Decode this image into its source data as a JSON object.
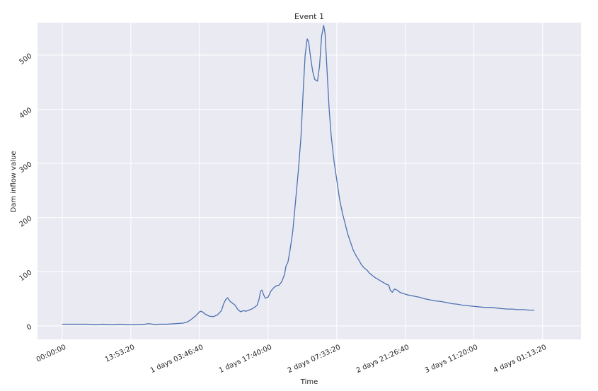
{
  "colors": {
    "plot_background": "#EAEAF2",
    "grid": "#FFFFFF",
    "line": "#4C72B0",
    "text": "#262626"
  },
  "chart_data": {
    "type": "line",
    "title": "Event 1",
    "xlabel": "Time",
    "ylabel": "Dam inflow value",
    "grid": true,
    "xlim": [
      -18000,
      378000
    ],
    "ylim": [
      -25,
      560
    ],
    "x_ticks": [
      {
        "value": 0,
        "label": "00:00:00"
      },
      {
        "value": 50000,
        "label": "13:53:20"
      },
      {
        "value": 100000,
        "label": "1 days 03:46:40"
      },
      {
        "value": 150000,
        "label": "1 days 17:40:00"
      },
      {
        "value": 200000,
        "label": "2 days 07:33:20"
      },
      {
        "value": 250000,
        "label": "2 days 21:26:40"
      },
      {
        "value": 300000,
        "label": "3 days 11:20:00"
      },
      {
        "value": 350000,
        "label": "4 days 01:13:20"
      }
    ],
    "y_ticks": [
      {
        "value": 0,
        "label": "0"
      },
      {
        "value": 100,
        "label": "100"
      },
      {
        "value": 200,
        "label": "200"
      },
      {
        "value": 300,
        "label": "300"
      },
      {
        "value": 400,
        "label": "400"
      },
      {
        "value": 500,
        "label": "500"
      }
    ],
    "series": [
      {
        "points": [
          [
            0,
            3
          ],
          [
            6000,
            3
          ],
          [
            12000,
            3
          ],
          [
            18000,
            3
          ],
          [
            24000,
            2
          ],
          [
            30000,
            3
          ],
          [
            36000,
            2
          ],
          [
            42000,
            3
          ],
          [
            48000,
            2
          ],
          [
            54000,
            2
          ],
          [
            60000,
            3
          ],
          [
            63000,
            4
          ],
          [
            66000,
            3
          ],
          [
            68000,
            2
          ],
          [
            70000,
            3
          ],
          [
            76000,
            3
          ],
          [
            82000,
            4
          ],
          [
            88000,
            5
          ],
          [
            91000,
            7
          ],
          [
            93000,
            10
          ],
          [
            95000,
            14
          ],
          [
            97000,
            18
          ],
          [
            99000,
            23
          ],
          [
            100500,
            27
          ],
          [
            102000,
            26
          ],
          [
            104000,
            22
          ],
          [
            107000,
            18
          ],
          [
            110000,
            17
          ],
          [
            113000,
            20
          ],
          [
            116000,
            28
          ],
          [
            117500,
            40
          ],
          [
            119000,
            48
          ],
          [
            120500,
            52
          ],
          [
            122000,
            46
          ],
          [
            124000,
            42
          ],
          [
            126000,
            38
          ],
          [
            128000,
            30
          ],
          [
            130000,
            26
          ],
          [
            132000,
            28
          ],
          [
            134000,
            27
          ],
          [
            136000,
            29
          ],
          [
            138000,
            31
          ],
          [
            140000,
            34
          ],
          [
            142000,
            38
          ],
          [
            143500,
            50
          ],
          [
            144500,
            64
          ],
          [
            145500,
            66
          ],
          [
            147000,
            56
          ],
          [
            148000,
            51
          ],
          [
            150000,
            53
          ],
          [
            152000,
            64
          ],
          [
            154000,
            70
          ],
          [
            156000,
            74
          ],
          [
            158000,
            75
          ],
          [
            160000,
            82
          ],
          [
            162000,
            95
          ],
          [
            163000,
            110
          ],
          [
            164500,
            118
          ],
          [
            166000,
            140
          ],
          [
            168000,
            175
          ],
          [
            170000,
            230
          ],
          [
            172000,
            285
          ],
          [
            174000,
            350
          ],
          [
            175500,
            430
          ],
          [
            177000,
            500
          ],
          [
            178500,
            530
          ],
          [
            179500,
            525
          ],
          [
            181000,
            495
          ],
          [
            182500,
            470
          ],
          [
            184000,
            455
          ],
          [
            186000,
            452
          ],
          [
            187500,
            480
          ],
          [
            189000,
            535
          ],
          [
            190500,
            555
          ],
          [
            191500,
            540
          ],
          [
            193000,
            470
          ],
          [
            194500,
            400
          ],
          [
            196000,
            350
          ],
          [
            198000,
            305
          ],
          [
            200000,
            270
          ],
          [
            202000,
            235
          ],
          [
            204000,
            210
          ],
          [
            206000,
            190
          ],
          [
            208000,
            170
          ],
          [
            210000,
            155
          ],
          [
            212000,
            140
          ],
          [
            214000,
            130
          ],
          [
            216000,
            122
          ],
          [
            218000,
            113
          ],
          [
            220000,
            107
          ],
          [
            222000,
            103
          ],
          [
            224000,
            97
          ],
          [
            226000,
            93
          ],
          [
            228000,
            89
          ],
          [
            230000,
            86
          ],
          [
            232000,
            83
          ],
          [
            234000,
            80
          ],
          [
            236000,
            77
          ],
          [
            238000,
            75
          ],
          [
            239000,
            66
          ],
          [
            240500,
            62
          ],
          [
            242000,
            68
          ],
          [
            244000,
            66
          ],
          [
            246000,
            62
          ],
          [
            248000,
            60
          ],
          [
            252000,
            57
          ],
          [
            256000,
            55
          ],
          [
            260000,
            53
          ],
          [
            264000,
            50
          ],
          [
            268000,
            48
          ],
          [
            272000,
            46
          ],
          [
            276000,
            45
          ],
          [
            280000,
            43
          ],
          [
            284000,
            41
          ],
          [
            288000,
            40
          ],
          [
            292000,
            38
          ],
          [
            296000,
            37
          ],
          [
            300000,
            36
          ],
          [
            304000,
            35
          ],
          [
            308000,
            34
          ],
          [
            312000,
            34
          ],
          [
            316000,
            33
          ],
          [
            320000,
            32
          ],
          [
            324000,
            31
          ],
          [
            328000,
            31
          ],
          [
            332000,
            30
          ],
          [
            336000,
            30
          ],
          [
            340000,
            29
          ],
          [
            344000,
            29
          ]
        ]
      }
    ]
  }
}
